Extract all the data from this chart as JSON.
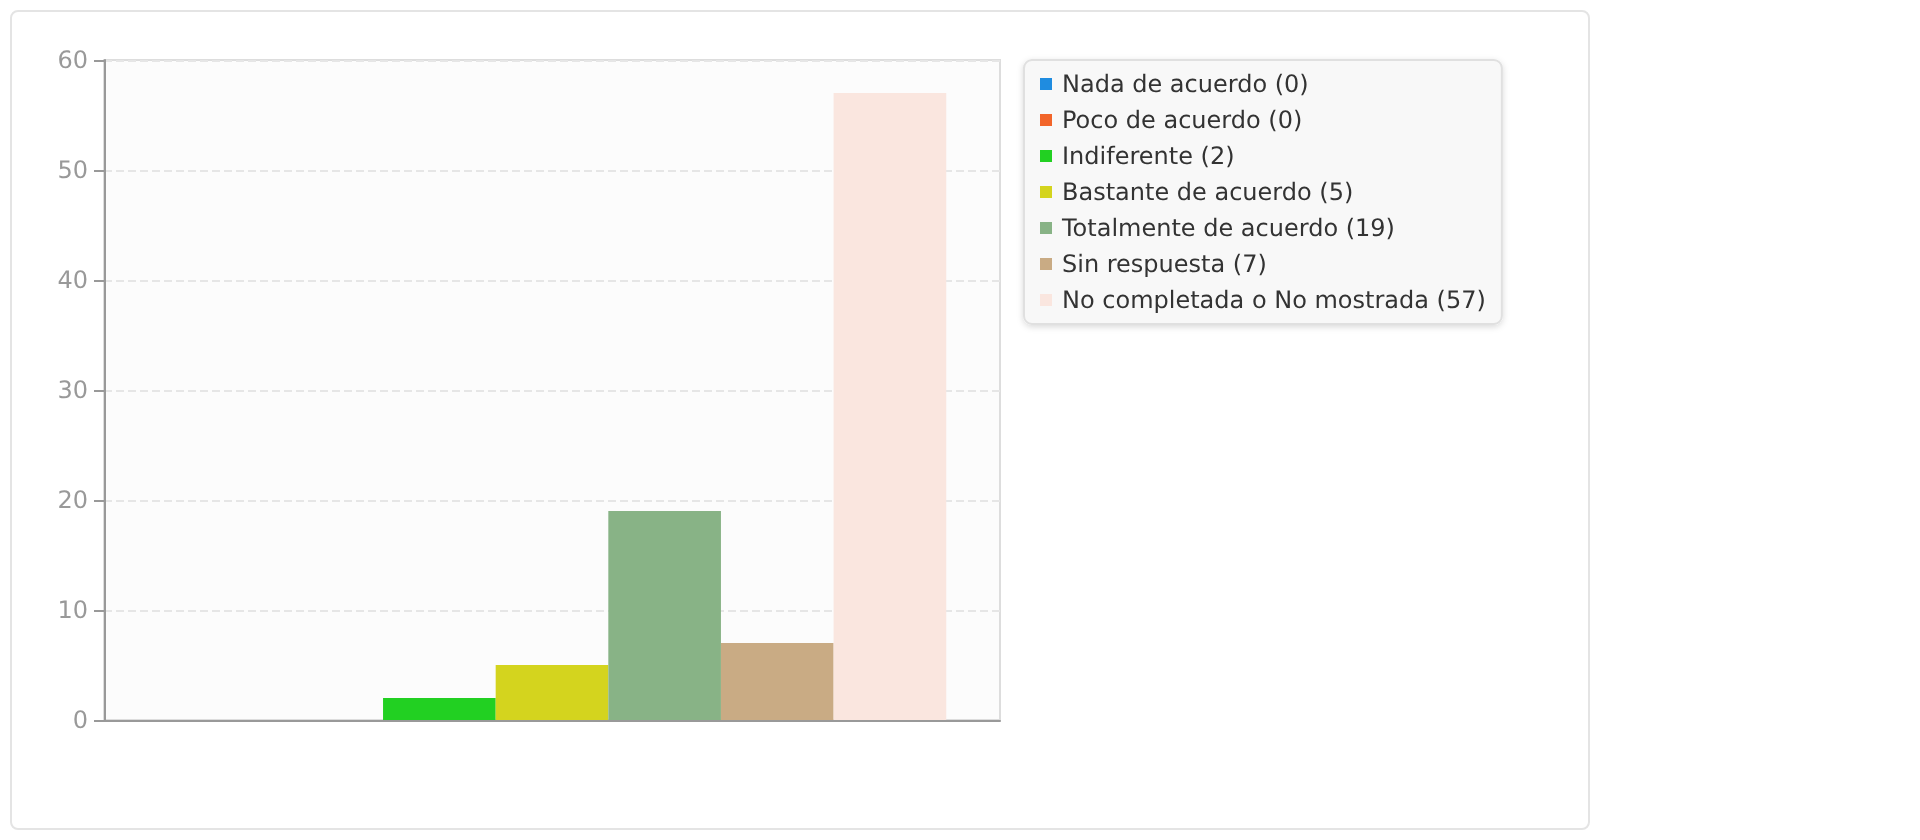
{
  "chart_data": {
    "type": "bar",
    "categories": [
      null
    ],
    "series": [
      {
        "name": "Nada de acuerdo (0)",
        "color": "#1f8ce0",
        "values": [
          0
        ]
      },
      {
        "name": "Poco de acuerdo (0)",
        "color": "#f2652a",
        "values": [
          0
        ]
      },
      {
        "name": "Indiferente (2)",
        "color": "#22d022",
        "values": [
          2
        ]
      },
      {
        "name": "Bastante de acuerdo (5)",
        "color": "#d4d41e",
        "values": [
          5
        ]
      },
      {
        "name": "Totalmente de acuerdo (19)",
        "color": "#88b386",
        "values": [
          19
        ]
      },
      {
        "name": "Sin respuesta (7)",
        "color": "#c9ab84",
        "values": [
          7
        ]
      },
      {
        "name": "No completada o No mostrada (57)",
        "color": "#fae6df",
        "values": [
          57
        ]
      }
    ],
    "ylim": [
      0,
      60
    ],
    "yticks": [
      0,
      10,
      20,
      30,
      40,
      50,
      60
    ],
    "grid": "y",
    "legend": "right"
  }
}
